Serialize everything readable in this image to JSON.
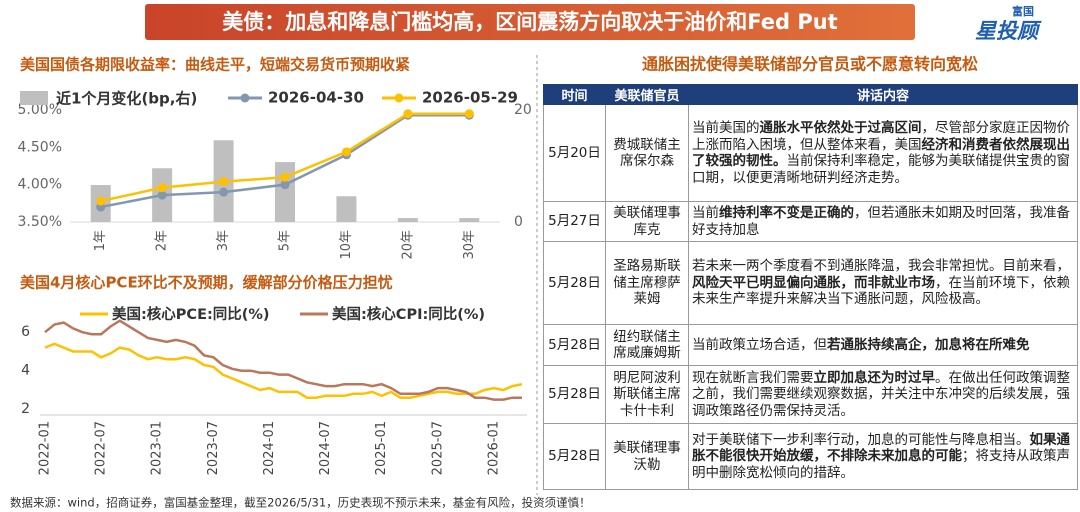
{
  "title": "美债：加息和降息门槛均高，区间震荡方向取决于油价和Fed Put",
  "logo": {
    "brand": "富国",
    "name": "星投顾"
  },
  "footer": "数据来源：wind，招商证券，富国基金整理，截至2026/5/31，历史表现不预示未来，基金有风险，投资须谨慎！",
  "chart_data": [
    {
      "type": "combo",
      "title": "美国国债各期限收益率：曲线走平，短端交易货币预期收紧",
      "categories": [
        "1年",
        "2年",
        "3年",
        "5年",
        "10年",
        "20年",
        "30年"
      ],
      "series": [
        {
          "name": "近1个月变化(bp,右)",
          "type": "bar",
          "axis": "y2",
          "color": "#bfbfbf",
          "values": [
            6.6,
            9.6,
            14.6,
            10.7,
            4.6,
            0.7,
            0.7
          ]
        },
        {
          "name": "2026-04-30",
          "type": "line",
          "color": "#8497b0",
          "values": [
            3.7,
            3.86,
            3.9,
            4.0,
            4.4,
            4.93,
            4.93
          ]
        },
        {
          "name": "2026-05-29",
          "type": "line",
          "color": "#ffc000",
          "values": [
            3.78,
            3.96,
            4.04,
            4.1,
            4.44,
            4.95,
            4.95
          ]
        }
      ],
      "ylim": [
        3.5,
        5.0
      ],
      "yticks": [
        {
          "value": 3.5,
          "label": "3.50%"
        },
        {
          "value": 4.0,
          "label": "4.00%"
        },
        {
          "value": 4.5,
          "label": "4.50%"
        },
        {
          "value": 5.0,
          "label": "5.00%"
        }
      ],
      "y2lim": [
        0,
        20
      ],
      "y2ticks": [
        0,
        20
      ]
    },
    {
      "type": "line",
      "title": "美国4月核心PCE环比不及预期，缓解部分价格压力担忧",
      "categories": [
        "2022-01",
        null,
        null,
        null,
        null,
        null,
        "2022-07",
        null,
        null,
        null,
        null,
        null,
        "2023-01",
        null,
        null,
        null,
        null,
        null,
        "2023-07",
        null,
        null,
        null,
        null,
        null,
        "2024-01",
        null,
        null,
        null,
        null,
        null,
        "2024-07",
        null,
        null,
        null,
        null,
        null,
        "2025-01",
        null,
        null,
        null,
        null,
        null,
        "2025-07",
        null,
        null,
        null,
        null,
        null,
        "2026-01",
        null,
        null,
        null
      ],
      "series": [
        {
          "name": "美国:核心PCE:同比(%)",
          "color": "#ffc000",
          "values": [
            5.2,
            5.4,
            5.2,
            5.0,
            5.0,
            5.0,
            4.7,
            4.9,
            5.2,
            5.1,
            4.8,
            4.6,
            4.7,
            4.6,
            4.6,
            4.7,
            4.6,
            4.3,
            4.2,
            3.8,
            3.6,
            3.4,
            3.2,
            3.0,
            3.1,
            2.9,
            2.9,
            2.9,
            2.6,
            2.6,
            2.7,
            2.7,
            2.7,
            2.8,
            2.8,
            2.9,
            2.7,
            2.9,
            2.6,
            2.6,
            2.7,
            2.8,
            2.9,
            2.9,
            2.8,
            2.8,
            2.8,
            3.0,
            3.1,
            3.0,
            3.2,
            3.3
          ]
        },
        {
          "name": "美国:核心CPI:同比(%)",
          "color": "#b9775b",
          "values": [
            6.0,
            6.4,
            6.5,
            6.2,
            6.0,
            5.9,
            5.9,
            6.3,
            6.6,
            6.3,
            6.0,
            5.7,
            5.6,
            5.5,
            5.6,
            5.5,
            5.3,
            4.8,
            4.7,
            4.3,
            4.1,
            4.0,
            4.0,
            3.9,
            3.9,
            3.8,
            3.8,
            3.6,
            3.4,
            3.3,
            3.2,
            3.2,
            3.3,
            3.3,
            3.3,
            3.2,
            3.3,
            3.1,
            2.8,
            2.8,
            2.8,
            2.9,
            3.1,
            3.1,
            3.0,
            2.9,
            2.6,
            2.6,
            2.5,
            2.5,
            2.6,
            2.6
          ]
        }
      ],
      "ylim": [
        1.7,
        7.0
      ],
      "yticks": [
        2,
        4,
        6
      ]
    }
  ],
  "table": {
    "title": "通胀困扰使得美联储部分官员或不愿意转向宽松",
    "header": [
      "时间",
      "美联储官员",
      "讲话内容"
    ],
    "rows": [
      {
        "date": "5月20日",
        "official": "费城联储主席保尔森",
        "content": [
          {
            "text": "当前美国的",
            "bold": false
          },
          {
            "text": "通胀水平依然处于过高区间",
            "bold": true
          },
          {
            "text": "，尽管部分家庭正因物价上涨而陷入困境，但从整体来看，美国",
            "bold": false
          },
          {
            "text": "经济和消费者依然展现出了较强的韧性。",
            "bold": true
          },
          {
            "text": "当前保持利率稳定，能够为美联储提供宝贵的窗口期，以便更清晰地研判经济走势。",
            "bold": false
          }
        ]
      },
      {
        "date": "5月27日",
        "official": "美联储理事库克",
        "content": [
          {
            "text": "当前",
            "bold": false
          },
          {
            "text": "维持利率不变是正确的",
            "bold": true
          },
          {
            "text": "，但若通胀未如期及时回落，我准备好支持加息",
            "bold": false
          }
        ]
      },
      {
        "date": "5月28日",
        "official": "圣路易斯联储主席穆萨莱姆",
        "content": [
          {
            "text": "若未来一两个季度看不到通胀降温，我会非常担忧。目前来看，",
            "bold": false
          },
          {
            "text": "风险天平已明显偏向通胀，而非就业市场",
            "bold": true
          },
          {
            "text": "，在当前环境下，依赖未来生产率提升来解决当下通胀问题，风险极高。",
            "bold": false
          }
        ]
      },
      {
        "date": "5月28日",
        "official": "纽约联储主席威廉姆斯",
        "content": [
          {
            "text": "当前政策立场合适，但",
            "bold": false
          },
          {
            "text": "若通胀持续高企，加息将在所难免",
            "bold": true
          }
        ]
      },
      {
        "date": "5月28日",
        "official": "明尼阿波利斯联储主席卡什卡利",
        "content": [
          {
            "text": "现在就断言我们需要",
            "bold": false
          },
          {
            "text": "立即加息还为时过早",
            "bold": true
          },
          {
            "text": "。在做出任何政策调整之前，我们需要继续观察数据，并关注中东冲突的后续发展，强调政策路径仍需保持灵活。",
            "bold": false
          }
        ]
      },
      {
        "date": "5月28日",
        "official": "美联储理事沃勒",
        "content": [
          {
            "text": "对于美联储下一步利率行动，加息的可能性与降息相当。",
            "bold": false
          },
          {
            "text": "如果通胀不能很快开始放缓，不排除未来加息的可能",
            "bold": true
          },
          {
            "text": "；将支持从政策声明中删除宽松倾向的措辞。",
            "bold": false
          }
        ]
      }
    ]
  }
}
